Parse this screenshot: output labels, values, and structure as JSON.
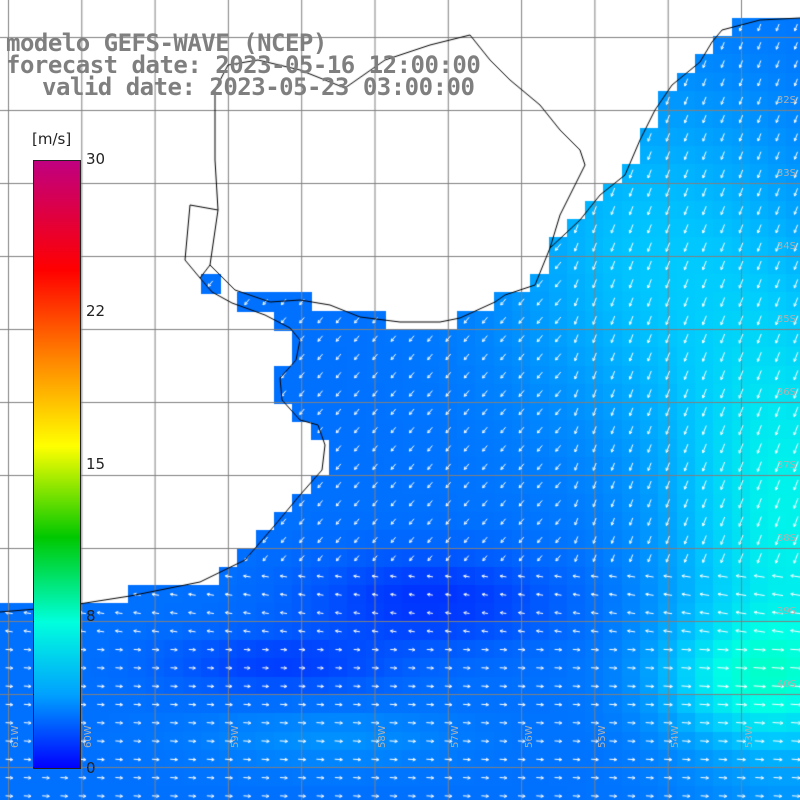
{
  "header": {
    "title_line1": "modelo GEFS-WAVE (NCEP)",
    "title_line2": "forecast date: 2023-05-16 12:00:00",
    "title_line3": "valid date: 2023-05-23 03:00:00"
  },
  "colorbar": {
    "unit": "[m/s]",
    "ticks": [
      "30",
      "22",
      "15",
      "8",
      "0"
    ],
    "colors": [
      "#c00080",
      "#ff0000",
      "#ff8800",
      "#ffff00",
      "#00c800",
      "#00ffdd",
      "#00a0ff",
      "#0000ff"
    ]
  },
  "map": {
    "lat_labels": [
      "32S",
      "33S",
      "34S",
      "35S",
      "36S",
      "37S",
      "38S",
      "39S",
      "40S"
    ],
    "lon_labels": [
      "61W",
      "60W",
      "59W",
      "58W",
      "57W",
      "56W",
      "55W",
      "54W",
      "53W"
    ],
    "colors": {
      "land": "#ffffff",
      "coast": "#000000",
      "grid": "#808080",
      "arrow": "#ffffff"
    }
  }
}
